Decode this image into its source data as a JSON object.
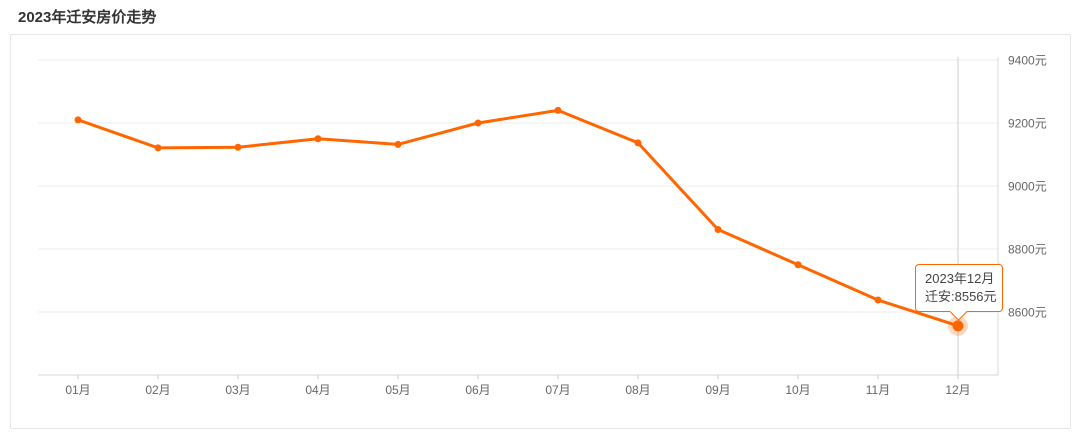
{
  "header": {
    "title": "2023年迁安房价走势"
  },
  "chart_data": {
    "type": "line",
    "title": "2023年迁安房价走势",
    "series_name": "迁安",
    "unit": "元",
    "categories": [
      "01月",
      "02月",
      "03月",
      "04月",
      "05月",
      "06月",
      "07月",
      "08月",
      "09月",
      "10月",
      "11月",
      "12月"
    ],
    "values": [
      9210,
      9121,
      9123,
      9150,
      9132,
      9200,
      9240,
      9137,
      8862,
      8750,
      8638,
      8556
    ],
    "y_ticks": [
      9400,
      9200,
      9000,
      8800,
      8600
    ],
    "y_tick_labels": [
      "9400元",
      "9200元",
      "9000元",
      "8800元",
      "8600元"
    ],
    "ylim": [
      8400,
      9450
    ],
    "grid": "horizontal-only",
    "legend": "none",
    "y_axis_position": "right",
    "highlight_index": 11,
    "tooltip": {
      "title": "2023年12月",
      "value_label": "迁安:8556元"
    },
    "colors": {
      "line": "#ff6600",
      "point": "#ff6600",
      "halo": "rgba(255,102,0,0.25)",
      "gridline": "#eeeeee",
      "axis": "#d9d9d9",
      "tick": "#cccccc",
      "pointer_line": "#cccccc",
      "axis_label": "#666666",
      "tooltip_border": "#ff6600"
    }
  }
}
